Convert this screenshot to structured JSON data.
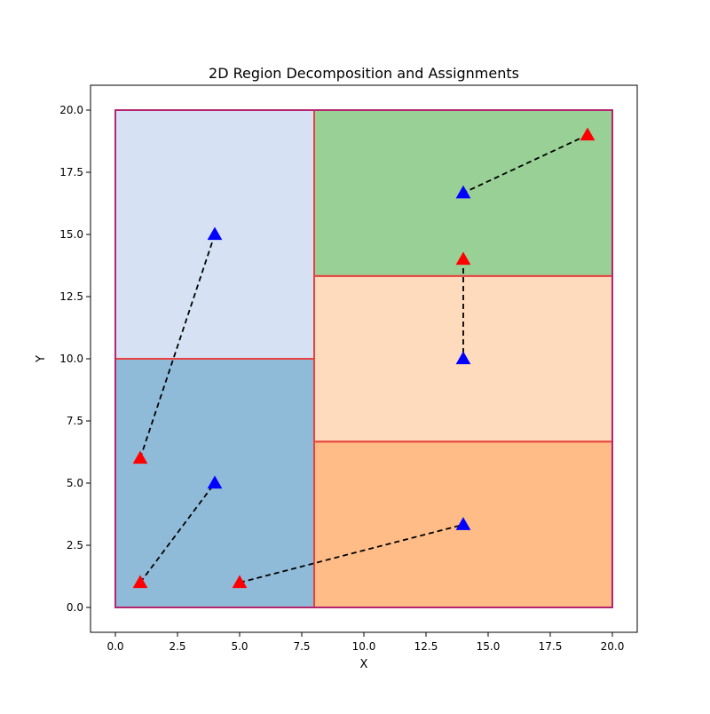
{
  "chart_data": {
    "type": "scatter",
    "title": "2D Region Decomposition and Assignments",
    "xlabel": "X",
    "ylabel": "Y",
    "xlim": [
      -1,
      21
    ],
    "ylim": [
      -1,
      21
    ],
    "grid": false,
    "x_ticks": [
      0,
      2.5,
      5,
      7.5,
      10,
      12.5,
      15,
      17.5,
      20
    ],
    "x_tick_labels": [
      "0.0",
      "2.5",
      "5.0",
      "7.5",
      "10.0",
      "12.5",
      "15.0",
      "17.5",
      "20.0"
    ],
    "y_ticks": [
      0,
      2.5,
      5,
      7.5,
      10,
      12.5,
      15,
      17.5,
      20
    ],
    "y_tick_labels": [
      "0.0",
      "2.5",
      "5.0",
      "7.5",
      "10.0",
      "12.5",
      "15.0",
      "17.5",
      "20.0"
    ],
    "regions": [
      {
        "x0": 0,
        "y0": 0,
        "x1": 8,
        "y1": 10,
        "fill": "#8fbbd9"
      },
      {
        "x0": 0,
        "y0": 10,
        "x1": 8,
        "y1": 20,
        "fill": "#d6e2f3"
      },
      {
        "x0": 8,
        "y0": 0,
        "x1": 20,
        "y1": 6.67,
        "fill": "#ffbc87"
      },
      {
        "x0": 8,
        "y0": 6.67,
        "x1": 20,
        "y1": 13.33,
        "fill": "#ffdbbd"
      },
      {
        "x0": 8,
        "y0": 13.33,
        "x1": 20,
        "y1": 20,
        "fill": "#98d095"
      }
    ],
    "inner_edge_color": "#e8413f",
    "outer_edge_color": "#b5256f",
    "red_points": [
      {
        "x": 1,
        "y": 6
      },
      {
        "x": 1,
        "y": 1
      },
      {
        "x": 5,
        "y": 1
      },
      {
        "x": 14,
        "y": 14
      },
      {
        "x": 19,
        "y": 19
      }
    ],
    "blue_points": [
      {
        "x": 4,
        "y": 15
      },
      {
        "x": 4,
        "y": 5
      },
      {
        "x": 14,
        "y": 3.33
      },
      {
        "x": 14,
        "y": 10
      },
      {
        "x": 14,
        "y": 16.67
      }
    ],
    "assignments": [
      {
        "from": [
          1,
          6
        ],
        "to": [
          4,
          15
        ]
      },
      {
        "from": [
          1,
          1
        ],
        "to": [
          4,
          5
        ]
      },
      {
        "from": [
          5,
          1
        ],
        "to": [
          14,
          3.33
        ]
      },
      {
        "from": [
          14,
          14
        ],
        "to": [
          14,
          10
        ]
      },
      {
        "from": [
          19,
          19
        ],
        "to": [
          14,
          16.67
        ]
      }
    ],
    "red_color": "#ff0000",
    "blue_color": "#0000ff"
  }
}
